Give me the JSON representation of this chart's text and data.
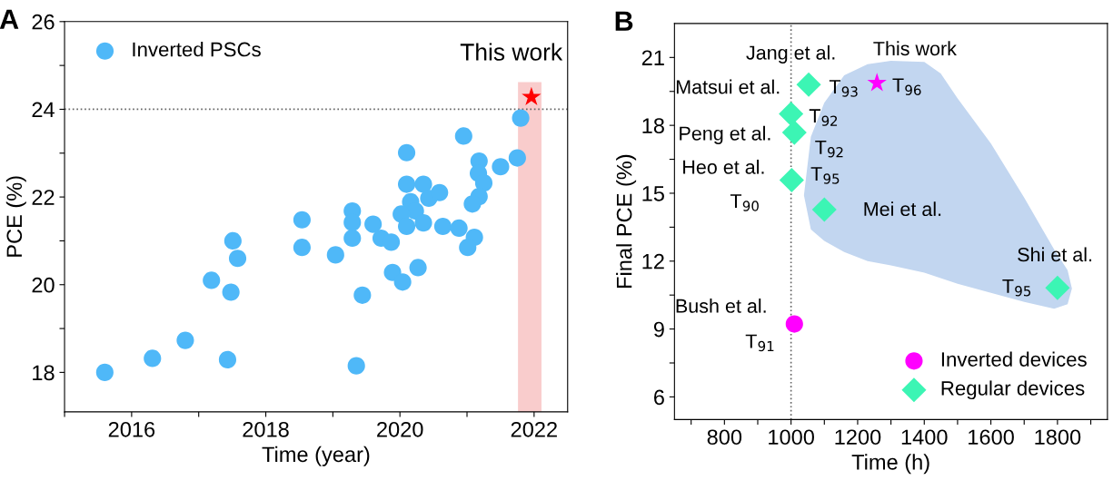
{
  "chart_data": [
    {
      "type": "scatter",
      "xlabel": "Time (year)",
      "ylabel": "PCE (%)",
      "xlim": [
        2015,
        2022.5
      ],
      "ylim": [
        17.1,
        26
      ],
      "xticks": [
        {
          "value": 2015,
          "label": null
        },
        2016,
        {
          "value": 2017,
          "label": null
        },
        2018,
        {
          "value": 2019,
          "label": null
        },
        2020,
        {
          "value": 2021,
          "label": null
        },
        2022
      ],
      "yticks": [
        18,
        {
          "value": 19,
          "label": null
        },
        20,
        {
          "value": 21,
          "label": null
        },
        22,
        {
          "value": 23,
          "label": null
        },
        24,
        {
          "value": 25,
          "label": null
        },
        26
      ],
      "grid": false,
      "legend": "top left",
      "ref_lines": [
        {
          "axis": "y",
          "value": 24,
          "color": "#666666",
          "line_style": "dotted"
        }
      ],
      "annotations": [
        "A",
        {
          "text": "This work",
          "x": 2021.96,
          "y": 24.28
        }
      ],
      "series": [
        {
          "type": "bar",
          "color": "#f9cccc",
          "x": [
            2021.935
          ],
          "values": [
            24.62
          ]
        },
        {
          "name": "Inverted PSCs",
          "color": "#4fb8f8",
          "marker": "circle",
          "x": [
            2015.6,
            2016.31,
            2016.8,
            2017.43,
            2017.19,
            2017.48,
            2017.51,
            2017.58,
            2018.54,
            2018.54,
            2019.04,
            2019.29,
            2019.29,
            2019.29,
            2019.44,
            2019.35,
            2019.6,
            2019.72,
            2019.87,
            2019.89,
            2020.04,
            2020.27,
            2020.1,
            2020.1,
            2020.35,
            2020.43,
            2020.59,
            2020.16,
            2020.23,
            2020.02,
            2020.1,
            2020.35,
            2020.64,
            2020.88,
            2021.11,
            2021.01,
            2020.95,
            2021.18,
            2021.17,
            2021.25,
            2021.18,
            2021.08,
            2021.5,
            2021.75,
            2021.8
          ],
          "values": [
            18.0,
            18.32,
            18.73,
            18.29,
            20.1,
            19.83,
            21.0,
            20.6,
            21.48,
            20.85,
            20.68,
            21.68,
            21.42,
            21.06,
            19.76,
            18.15,
            21.38,
            21.06,
            20.97,
            20.28,
            20.06,
            20.39,
            23.01,
            22.29,
            22.29,
            21.97,
            22.1,
            21.89,
            21.68,
            21.61,
            21.33,
            21.41,
            21.33,
            21.29,
            21.08,
            20.85,
            23.39,
            22.82,
            22.54,
            22.32,
            22.01,
            21.84,
            22.69,
            22.89,
            23.8
          ]
        },
        {
          "color": "#ff0000",
          "marker": "star",
          "x": [
            2021.96
          ],
          "values": [
            24.28
          ]
        }
      ]
    },
    {
      "type": "scatter",
      "xlabel": "Time (h)",
      "ylabel": "Final PCE (%)",
      "xlim": [
        650,
        1950
      ],
      "ylim": [
        5,
        22.5
      ],
      "xticks": [
        {
          "value": 700,
          "label": null
        },
        800,
        {
          "value": 900,
          "label": null
        },
        1000,
        {
          "value": 1100,
          "label": null
        },
        1200,
        {
          "value": 1300,
          "label": null
        },
        1400,
        {
          "value": 1500,
          "label": null
        },
        1600,
        {
          "value": 1700,
          "label": null
        },
        1800,
        {
          "value": 1900,
          "label": null
        }
      ],
      "yticks": [
        6,
        {
          "value": 7.5,
          "label": null
        },
        9,
        {
          "value": 10.5,
          "label": null
        },
        12,
        {
          "value": 13.5,
          "label": null
        },
        15,
        {
          "value": 16.5,
          "label": null
        },
        18,
        {
          "value": 19.5,
          "label": null
        },
        21
      ],
      "grid": false,
      "legend": "bottom right",
      "ref_lines": [
        {
          "axis": "x",
          "value": 1000,
          "color": "#666666",
          "line_style": "dotted"
        }
      ],
      "annotations": [
        "B",
        {
          "text": "Jang et al.",
          "x": 1053,
          "y": 19.8
        },
        {
          "text": "T$_{93}$",
          "x": 1053,
          "y": 19.8
        },
        {
          "text": "Matsui et al.",
          "x": 1000,
          "y": 18.51
        },
        {
          "text": "T$_{92}$",
          "x": 1000,
          "y": 18.51
        },
        {
          "text": "Peng et al.",
          "x": 1010,
          "y": 17.68
        },
        {
          "text": "T$_{92}$",
          "x": 1010,
          "y": 17.68
        },
        {
          "text": "Heo et al.",
          "x": 1002,
          "y": 15.58
        },
        {
          "text": "T$_{90}$",
          "x": 1002,
          "y": 15.58
        },
        {
          "text": "T$_{95}$",
          "x": 1100,
          "y": 14.28
        },
        {
          "text": "Mei et al.",
          "x": 1100,
          "y": 14.28
        },
        {
          "text": "Shi et al.",
          "x": 1800,
          "y": 10.82
        },
        {
          "text": "T$_{95}$",
          "x": 1800,
          "y": 10.82
        },
        {
          "text": "Bush et al.",
          "x": 1010,
          "y": 9.22
        },
        {
          "text": "T$_{91}$",
          "x": 1010,
          "y": 9.22
        },
        {
          "text": "This work",
          "x": 1258,
          "y": 19.87
        },
        {
          "text": "T$_{96}$",
          "x": 1258,
          "y": 19.87
        }
      ],
      "series": [
        {
          "name": "Inverted devices",
          "color": "#ff00ff",
          "marker": "circle",
          "x": [
            1010
          ],
          "values": [
            9.22
          ]
        },
        {
          "name": "Regular devices",
          "color": "#3cf5b4",
          "marker": "diamond",
          "x": [
            1053,
            1000,
            1010,
            1002,
            1100,
            1800
          ],
          "values": [
            19.8,
            18.51,
            17.68,
            15.58,
            14.28,
            10.82
          ]
        },
        {
          "color": "#ff00ff",
          "marker": "star",
          "x": [
            1258
          ],
          "values": [
            19.87
          ]
        }
      ]
    }
  ]
}
